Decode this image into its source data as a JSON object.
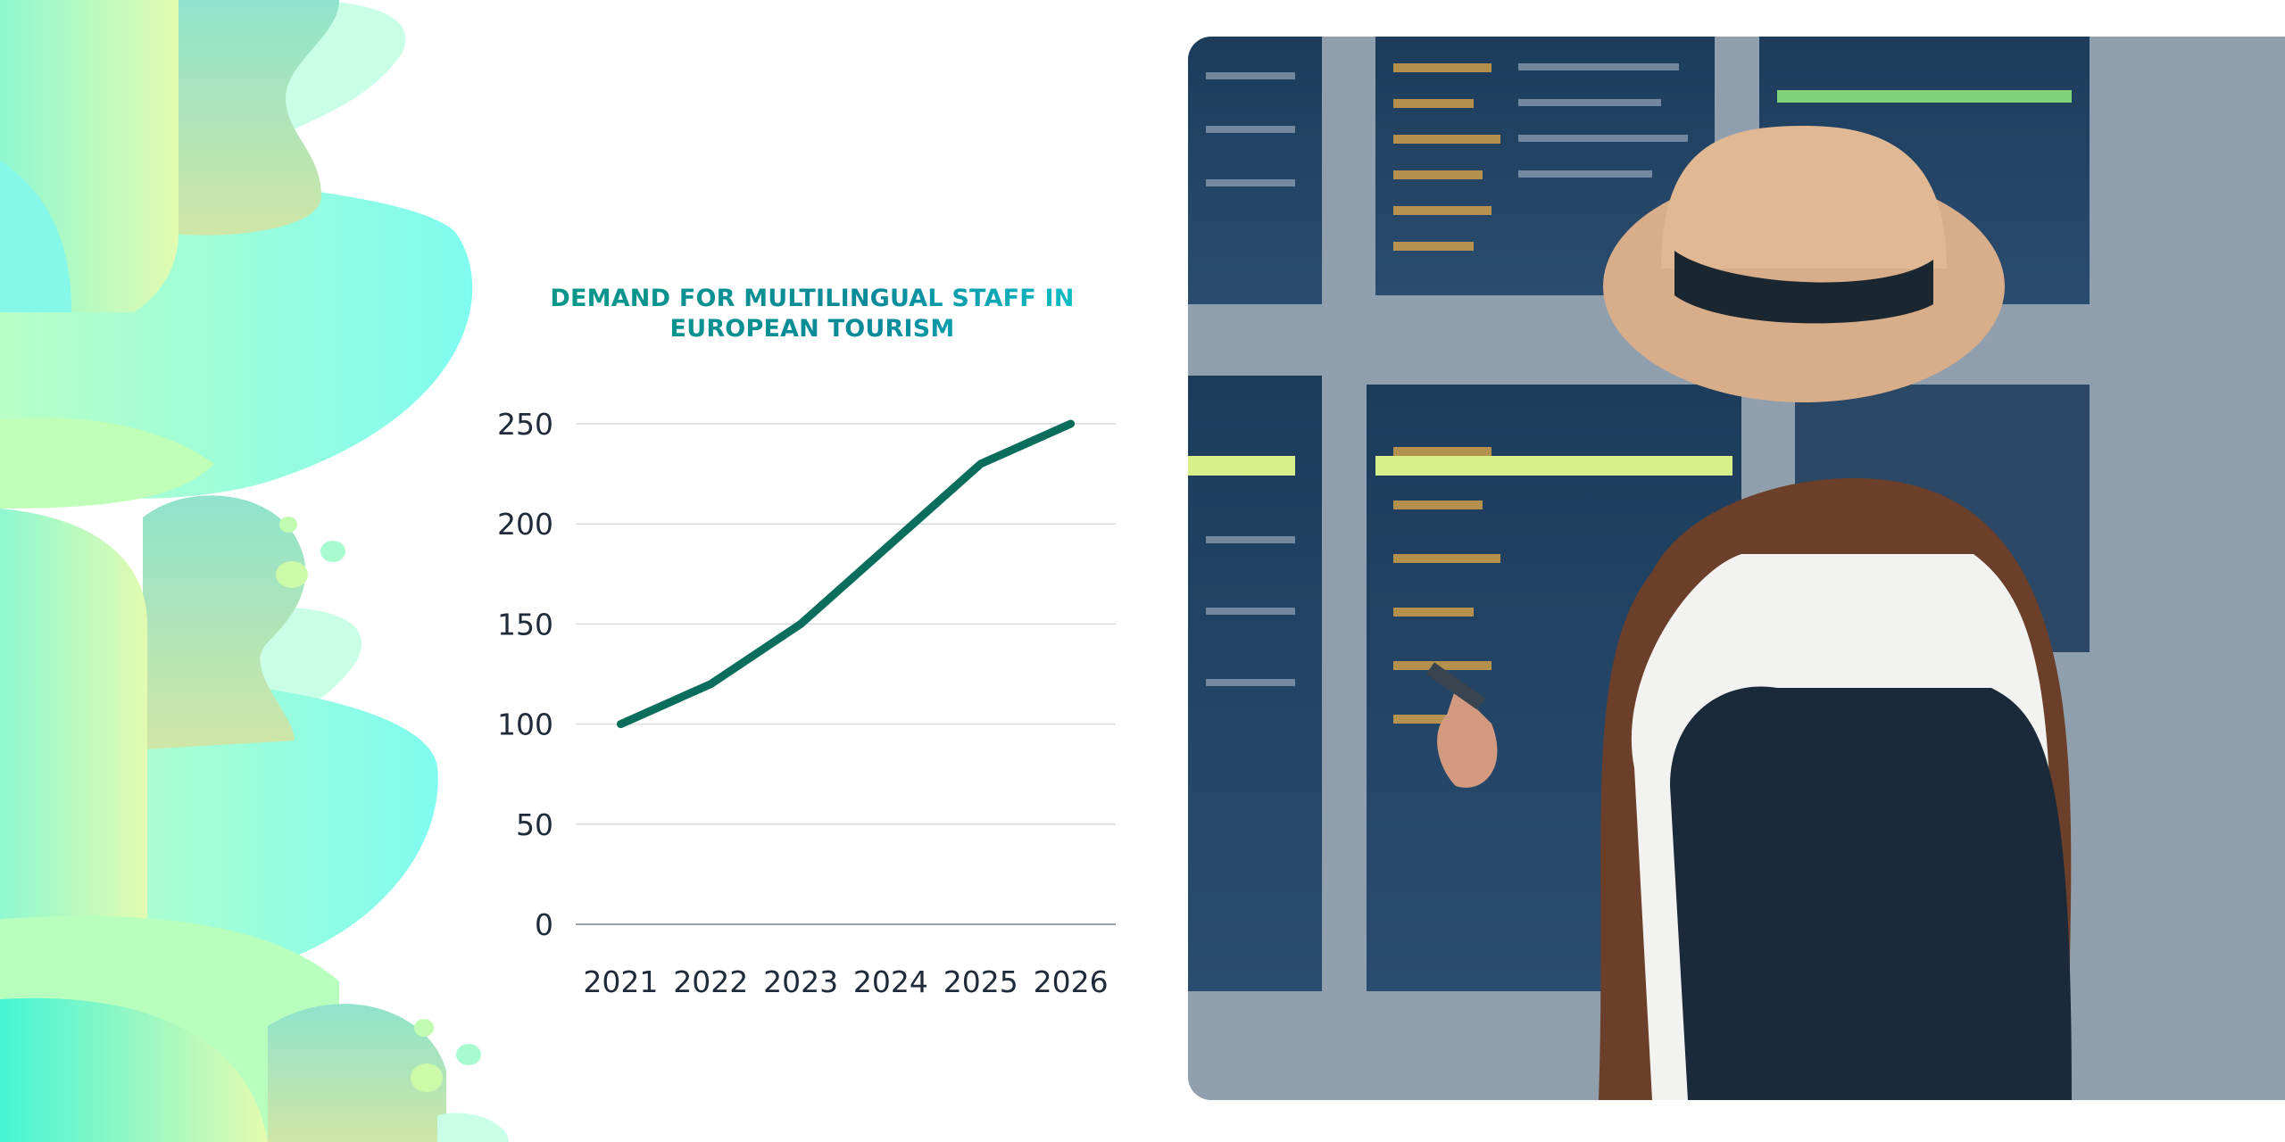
{
  "chart_data": {
    "type": "line",
    "title": "DEMAND FOR MULTILINGUAL STAFF IN EUROPEAN TOURISM",
    "xlabel": "",
    "ylabel": "",
    "categories": [
      "2021",
      "2022",
      "2023",
      "2024",
      "2025",
      "2026"
    ],
    "series": [
      {
        "values": [
          100,
          120,
          150,
          190,
          230,
          250
        ],
        "color": "#0b6e5d"
      }
    ],
    "ylim": [
      0,
      250
    ],
    "yticks": [
      "0",
      "50",
      "100",
      "150",
      "200",
      "250"
    ],
    "grid": true,
    "legend": "none"
  },
  "decor": {
    "photo_subject": "traveler-with-hat-at-departure-board",
    "blob_colors": [
      "#7ffdf0",
      "#dffbb0",
      "#9de8c8",
      "#c8ffe6"
    ]
  }
}
